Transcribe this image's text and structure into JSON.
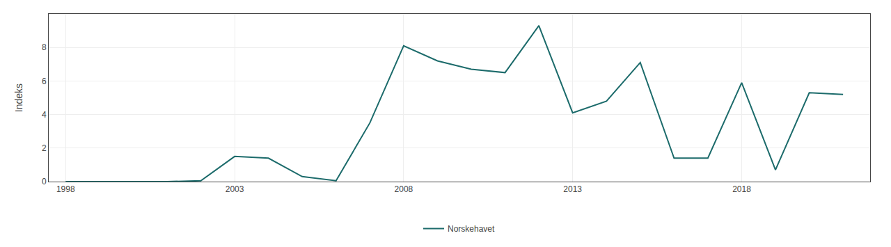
{
  "chart_data": {
    "type": "line",
    "ylabel": "Indeks",
    "x": [
      1998,
      1999,
      2000,
      2001,
      2002,
      2003,
      2004,
      2005,
      2006,
      2007,
      2008,
      2009,
      2010,
      2011,
      2012,
      2013,
      2014,
      2015,
      2016,
      2017,
      2018,
      2019,
      2020,
      2021
    ],
    "series": [
      {
        "name": "Norskehavet",
        "color": "#1c6b6b",
        "values": [
          0.0,
          0.0,
          0.0,
          0.0,
          0.05,
          1.5,
          1.4,
          0.3,
          0.05,
          3.5,
          8.1,
          7.2,
          6.7,
          6.5,
          9.3,
          4.1,
          4.8,
          7.1,
          1.4,
          1.4,
          5.9,
          0.7,
          5.3,
          5.2
        ]
      }
    ],
    "xlim": [
      1997.5,
      2021.8
    ],
    "xticks": [
      1998,
      2003,
      2008,
      2013,
      2018
    ],
    "ylim": [
      0,
      10
    ],
    "yticks": [
      0,
      2,
      4,
      6,
      8
    ],
    "grid": true,
    "legend": "bottom"
  }
}
